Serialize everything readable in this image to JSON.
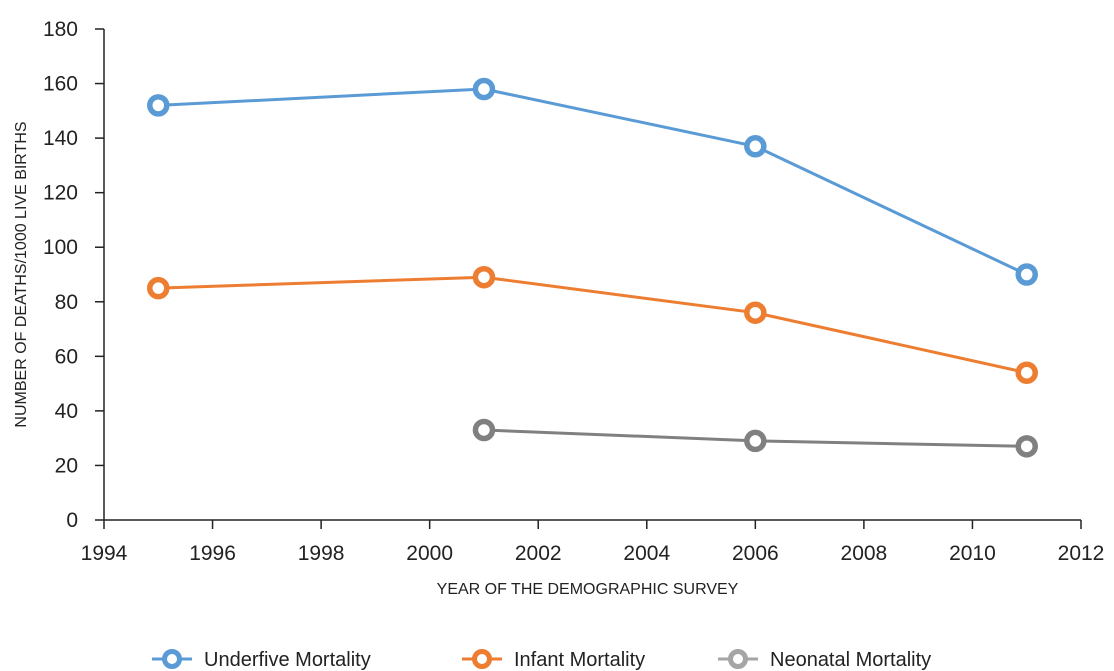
{
  "chart_data": {
    "type": "line",
    "title": "",
    "xlabel": "YEAR OF THE DEMOGRAPHIC SURVEY",
    "ylabel": "NUMBER OF DEATHS/1000 LIVE BIRTHS",
    "xlim": [
      1994,
      2012
    ],
    "ylim": [
      0,
      180
    ],
    "xticks": [
      1994,
      1996,
      1998,
      2000,
      2002,
      2004,
      2006,
      2008,
      2010,
      2012
    ],
    "yticks": [
      0,
      20,
      40,
      60,
      80,
      100,
      120,
      140,
      160,
      180
    ],
    "grid": false,
    "legend_position": "bottom",
    "series": [
      {
        "name": "Underfive Mortality",
        "color": "#5b9bd5",
        "x": [
          1995,
          2001,
          2006,
          2011
        ],
        "y": [
          152,
          158,
          137,
          90
        ]
      },
      {
        "name": "Infant Mortality",
        "color": "#ed7d31",
        "x": [
          1995,
          2001,
          2006,
          2011
        ],
        "y": [
          85,
          89,
          76,
          54
        ]
      },
      {
        "name": "Neonatal Mortality",
        "color": "#808080",
        "legend_color": "#a5a5a5",
        "x": [
          2001,
          2006,
          2011
        ],
        "y": [
          33,
          29,
          27
        ]
      }
    ]
  }
}
